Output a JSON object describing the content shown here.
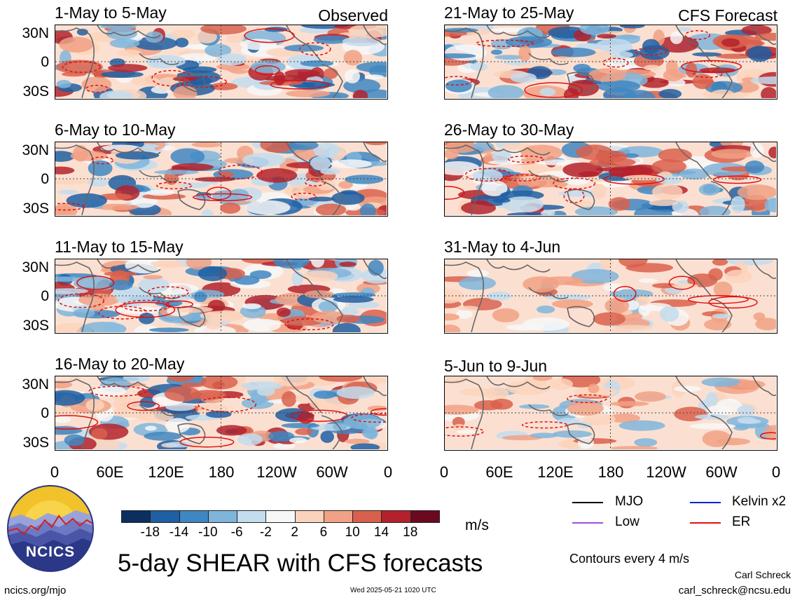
{
  "source_left": "Observed",
  "source_right": "CFS Forecast",
  "panels": [
    {
      "title": "1-May to 5-May"
    },
    {
      "title": "6-May to 10-May"
    },
    {
      "title": "11-May to 15-May"
    },
    {
      "title": "16-May to 20-May"
    },
    {
      "title": "21-May to 25-May"
    },
    {
      "title": "26-May to 30-May"
    },
    {
      "title": "31-May to 4-Jun"
    },
    {
      "title": "5-Jun to 9-Jun"
    }
  ],
  "lat_labels": [
    "30N",
    "0",
    "30S"
  ],
  "lon_labels": [
    "0",
    "60E",
    "120E",
    "180",
    "120W",
    "60W",
    "0"
  ],
  "colorbar": {
    "colors": [
      "#0b2f5e",
      "#1f5fa3",
      "#3f87c2",
      "#7fb5da",
      "#c3dcee",
      "#f7f7f7",
      "#fbd3bc",
      "#f1a185",
      "#d9604c",
      "#b3222b",
      "#6b0a1f"
    ],
    "ticks": [
      "-18",
      "-14",
      "-10",
      "-6",
      "-2",
      "2",
      "6",
      "10",
      "14",
      "18"
    ],
    "unit": "m/s"
  },
  "legend": [
    {
      "label": "MJO",
      "color": "#000000"
    },
    {
      "label": "Kelvin x2",
      "color": "#1020e0"
    },
    {
      "label": "Low",
      "color": "#9b4fd6"
    },
    {
      "label": "ER",
      "color": "#e01010"
    }
  ],
  "contours_note": "Contours every 4 m/s",
  "main_title": "5-day SHEAR with CFS forecasts",
  "logo_text": "NCICS",
  "site": "ncics.org/mjo",
  "timestamp": "Wed 2025-05-21 1020 UTC",
  "author": "Carl Schreck",
  "email": "carl_schreck@ncsu.edu"
}
